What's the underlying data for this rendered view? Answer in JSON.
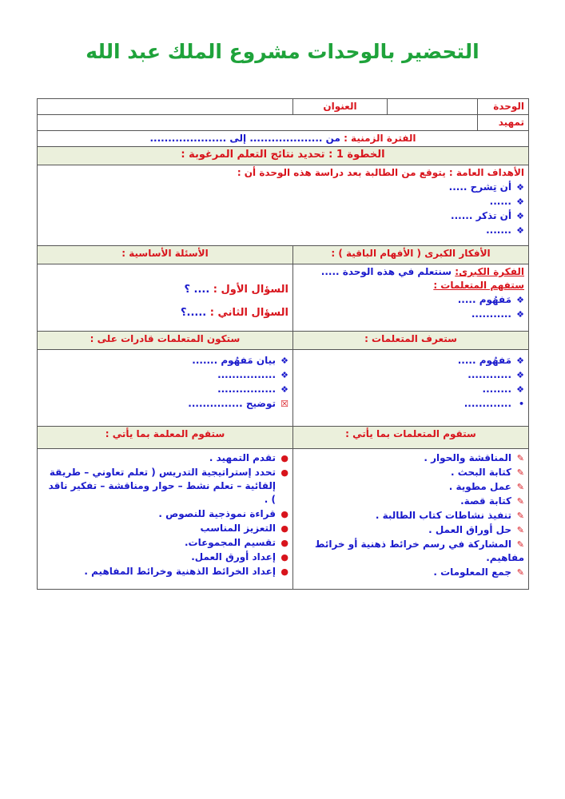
{
  "title": "التحضير بالوحدات مشروع الملك عبد الله",
  "colors": {
    "title": "#1fa33b",
    "labels": "#d8141c",
    "content": "#1a1acc",
    "header_bg": "#ebf0dc"
  },
  "unit_label": "الوحدة",
  "title_label": "العنوان",
  "intro_label": "تمهيد",
  "period": {
    "label": "الفترة الزمنية :",
    "from": "من ....................",
    "to": "إلى ....................."
  },
  "step1": "الخطوة 1 : تحديد نتائج التعلم المرغوبة :",
  "objectives": {
    "heading": "الأهداف العامة : يتوقع من الطالبة بعد دراسة هذه الوحدة أن :",
    "items": [
      "أن تِشرح .....",
      "......",
      "أن تذكر ......",
      "......."
    ]
  },
  "big_ideas": {
    "heading": "الأفكار الكبرى ( الأفهام الباقية ) :",
    "label": "الفكرة الكبرى:",
    "text": "سنتعلم في هذه الوحدة .....",
    "understand_label": "ستفهم المتعلمات :",
    "items": [
      "مَفهُوم .....",
      "..........."
    ]
  },
  "questions": {
    "heading": "الأسئلة الأساسية :",
    "q1_label": "السؤال الأول :",
    "q1": ".... ؟",
    "q2_label": "السؤال الثاني :",
    "q2": ".....؟"
  },
  "know": {
    "heading": "ستعرف المتعلمات :",
    "items": [
      "مَفهُوم .....",
      "............",
      "........",
      "............."
    ]
  },
  "able": {
    "heading": "ستكون المتعلمات قادرات على :",
    "items": [
      "بيان مَفهُوم .......",
      "................",
      "................",
      "توضيح ..............."
    ]
  },
  "students_do": {
    "heading": "ستقوم المتعلمات بما يأتي :",
    "items": [
      "المناقشة والحوار .",
      "كتابة البحث .",
      "عمل مطوية .",
      "كتابة قصة.",
      "تنفيذ نشاطات كتاب الطالبة .",
      "حل أوراق العمل .",
      "المشاركة في رسم خرائط ذهنية أو خرائط مفاهيم.",
      "جمع المعلومات ."
    ]
  },
  "teacher_does": {
    "heading": "ستقوم المعلمة بما يأتي :",
    "items": [
      "تقدم التمهيد .",
      "تحدد إستراتيجية التدريس ( تعلم تعاوني – طريقة إلقائية – تعلم نشط – حوار ومناقشة – تفكير ناقد ) .",
      "قراءة نموذجية للنصوص .",
      "التعزيز المناسب",
      "تقسيم المجموعات.",
      "إعداد أورق العمل.",
      "إعداد الخرائط الذهنية وخرائط المفاهيم ."
    ]
  }
}
